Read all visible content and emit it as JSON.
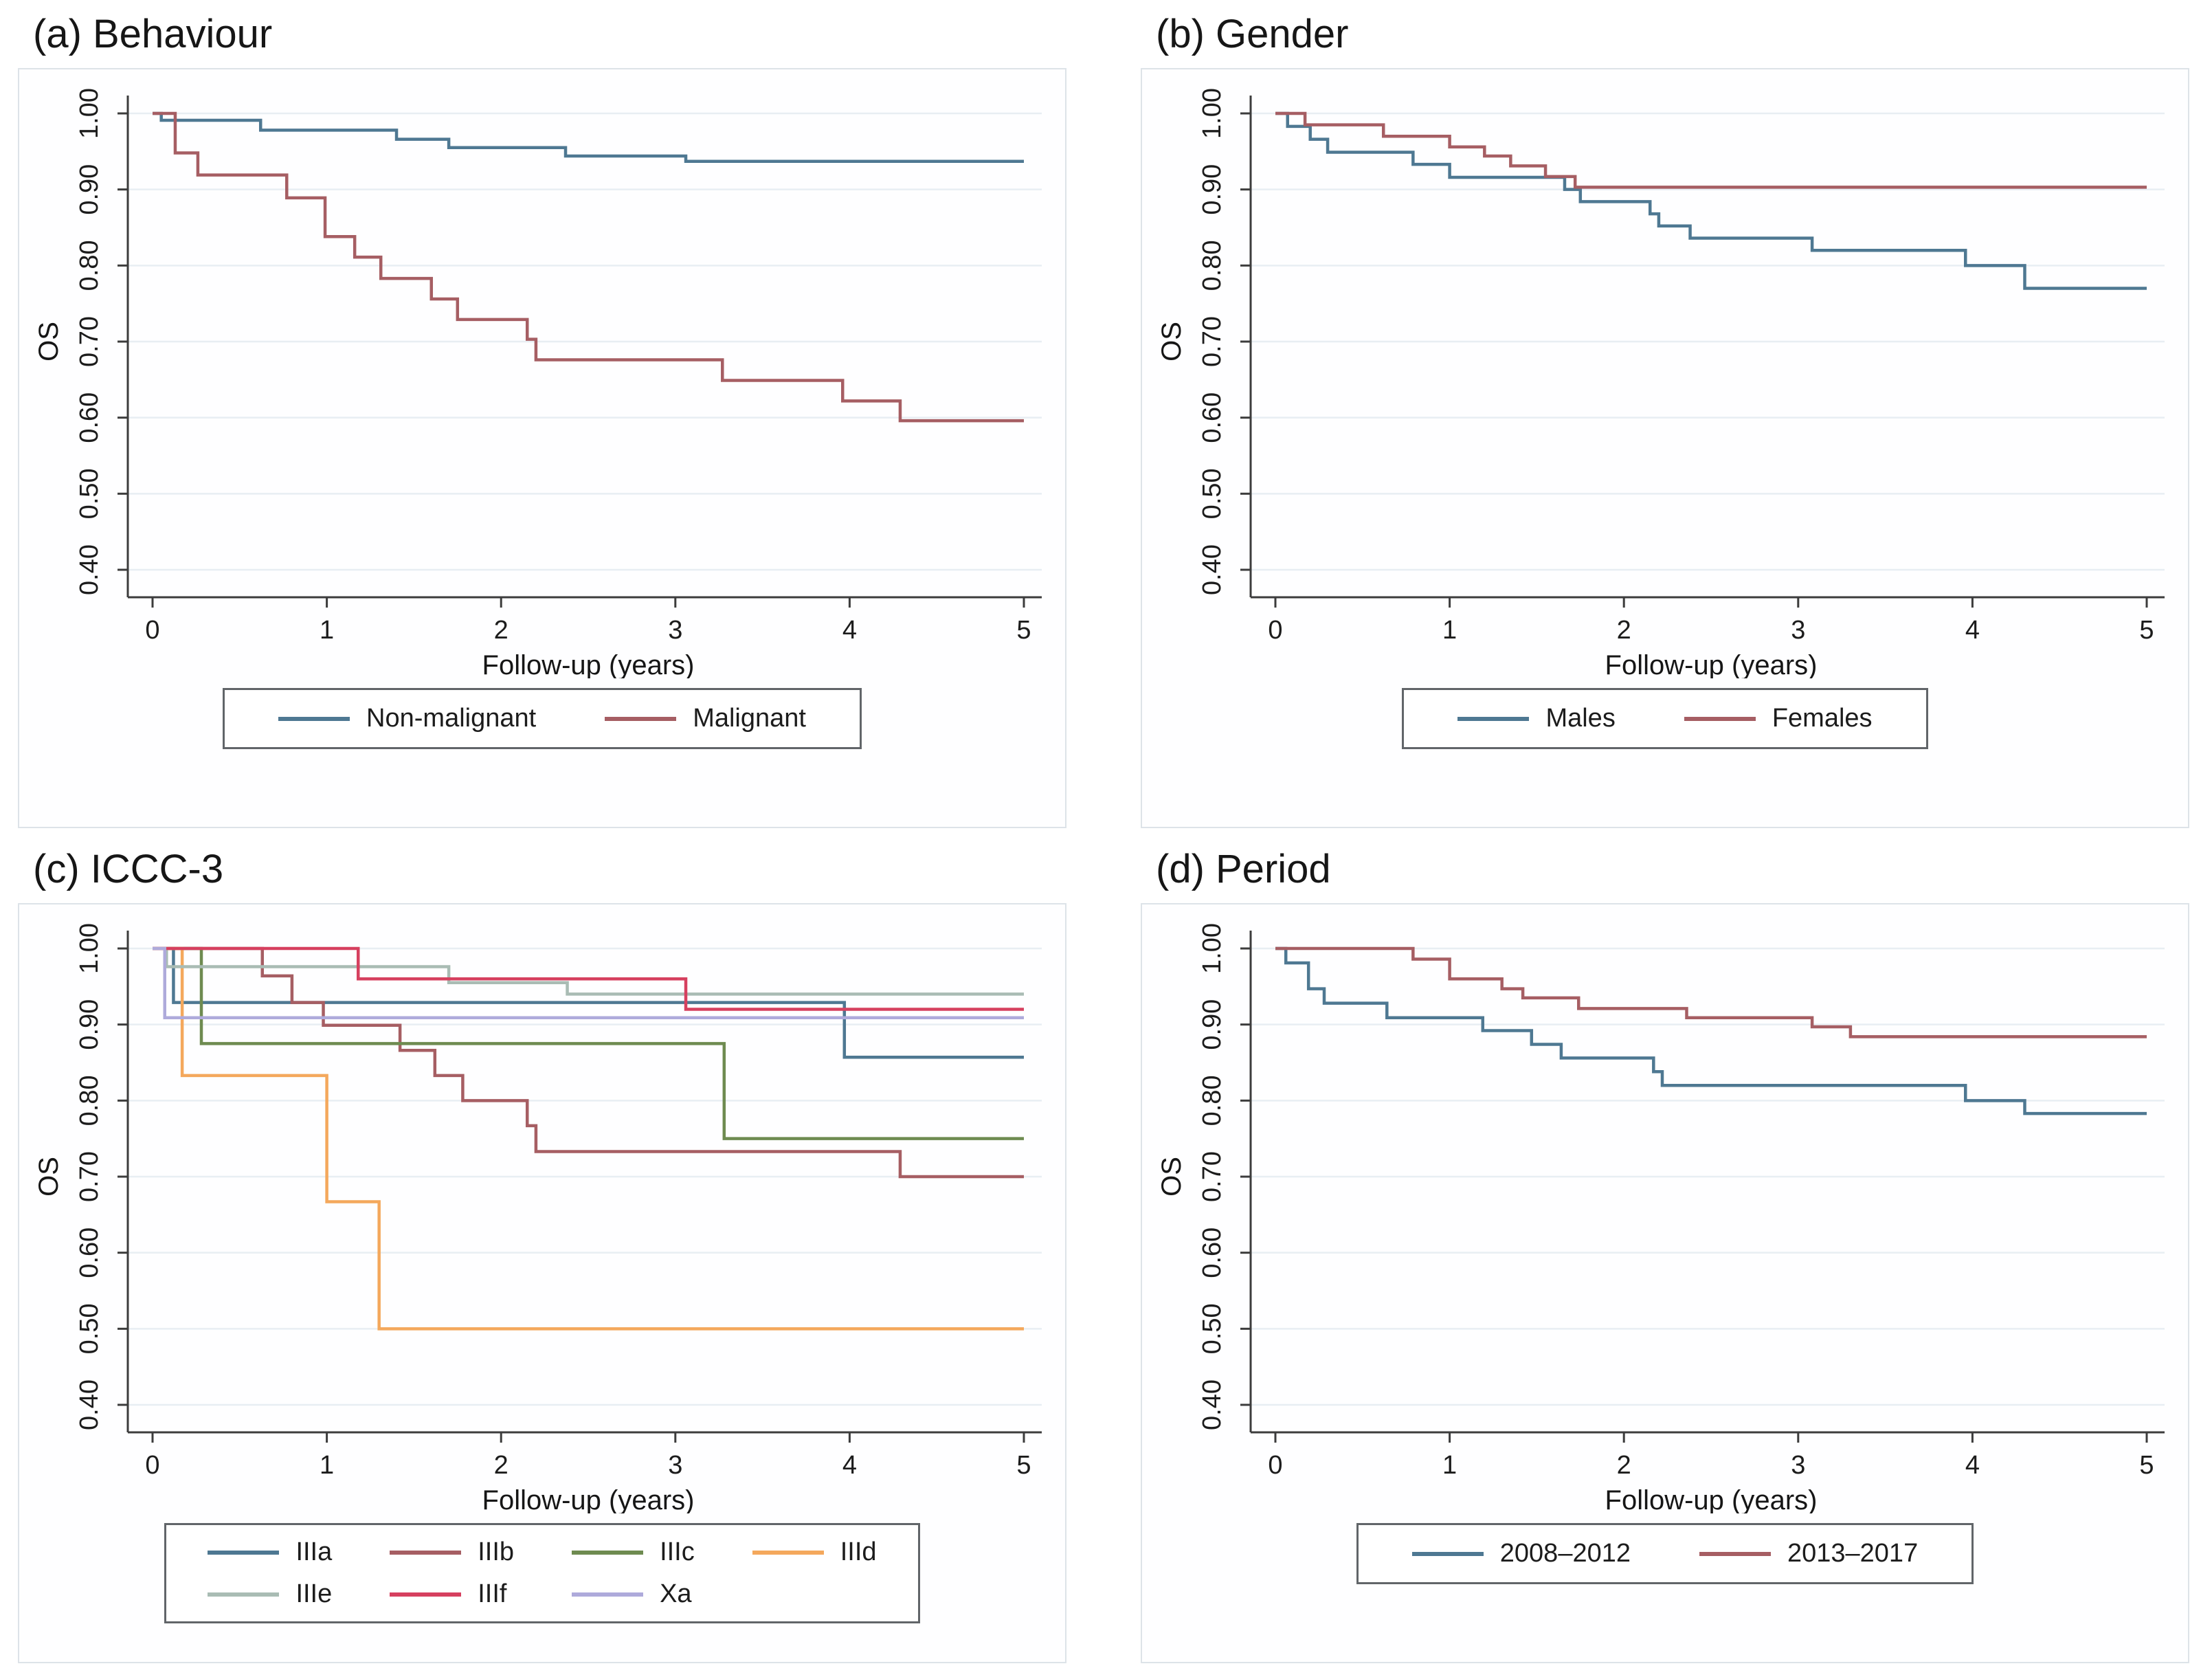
{
  "figure": {
    "background": "#ffffff",
    "panel_border": "#dde3e8",
    "grid_color": "#e8eef3",
    "axis_color": "#3c3c3c",
    "tick_text_color": "#1c1c1c"
  },
  "chart_data": [
    {
      "type": "line",
      "step": true,
      "title": "(a) Behaviour",
      "xlabel": "Follow-up (years)",
      "ylabel": "OS",
      "xlim": [
        0,
        5
      ],
      "ylim": [
        0.4,
        1.0
      ],
      "x_ticks": [
        "0",
        "1",
        "2",
        "3",
        "4",
        "5"
      ],
      "y_ticks": [
        "0.40",
        "0.50",
        "0.60",
        "0.70",
        "0.80",
        "0.90",
        "1.00"
      ],
      "grid": true,
      "legend_position": "bottom",
      "legend_columns": 2,
      "series": [
        {
          "name": "Non-malignant",
          "color": "#4e7892",
          "points": [
            [
              0,
              1.0
            ],
            [
              0.05,
              0.991
            ],
            [
              0.62,
              0.978
            ],
            [
              1.4,
              0.966
            ],
            [
              1.7,
              0.955
            ],
            [
              2.37,
              0.944
            ],
            [
              3.06,
              0.937
            ],
            [
              5,
              0.937
            ]
          ]
        },
        {
          "name": "Malignant",
          "color": "#a65e63",
          "points": [
            [
              0,
              1.0
            ],
            [
              0.13,
              0.948
            ],
            [
              0.26,
              0.919
            ],
            [
              0.77,
              0.889
            ],
            [
              0.99,
              0.838
            ],
            [
              1.16,
              0.811
            ],
            [
              1.31,
              0.783
            ],
            [
              1.6,
              0.756
            ],
            [
              1.75,
              0.729
            ],
            [
              2.15,
              0.703
            ],
            [
              2.2,
              0.676
            ],
            [
              3.27,
              0.649
            ],
            [
              3.96,
              0.622
            ],
            [
              4.29,
              0.596
            ],
            [
              5,
              0.596
            ]
          ]
        }
      ]
    },
    {
      "type": "line",
      "step": true,
      "title": "(b) Gender",
      "xlabel": "Follow-up (years)",
      "ylabel": "OS",
      "xlim": [
        0,
        5
      ],
      "ylim": [
        0.4,
        1.0
      ],
      "x_ticks": [
        "0",
        "1",
        "2",
        "3",
        "4",
        "5"
      ],
      "y_ticks": [
        "0.40",
        "0.50",
        "0.60",
        "0.70",
        "0.80",
        "0.90",
        "1.00"
      ],
      "grid": true,
      "legend_position": "bottom",
      "legend_columns": 2,
      "series": [
        {
          "name": "Males",
          "color": "#4e7892",
          "points": [
            [
              0,
              1.0
            ],
            [
              0.07,
              0.983
            ],
            [
              0.2,
              0.966
            ],
            [
              0.3,
              0.949
            ],
            [
              0.79,
              0.933
            ],
            [
              1.0,
              0.916
            ],
            [
              1.66,
              0.9
            ],
            [
              1.75,
              0.884
            ],
            [
              2.15,
              0.868
            ],
            [
              2.2,
              0.852
            ],
            [
              2.38,
              0.836
            ],
            [
              3.08,
              0.82
            ],
            [
              3.96,
              0.8
            ],
            [
              4.3,
              0.77
            ],
            [
              5,
              0.77
            ]
          ]
        },
        {
          "name": "Females",
          "color": "#a65e63",
          "points": [
            [
              0,
              1.0
            ],
            [
              0.17,
              0.985
            ],
            [
              0.62,
              0.97
            ],
            [
              1.0,
              0.956
            ],
            [
              1.2,
              0.944
            ],
            [
              1.35,
              0.931
            ],
            [
              1.55,
              0.917
            ],
            [
              1.72,
              0.903
            ],
            [
              5,
              0.903
            ]
          ]
        }
      ]
    },
    {
      "type": "line",
      "step": true,
      "title": "(c) ICCC-3",
      "xlabel": "Follow-up (years)",
      "ylabel": "OS",
      "xlim": [
        0,
        5
      ],
      "ylim": [
        0.4,
        1.0
      ],
      "x_ticks": [
        "0",
        "1",
        "2",
        "3",
        "4",
        "5"
      ],
      "y_ticks": [
        "0.40",
        "0.50",
        "0.60",
        "0.70",
        "0.80",
        "0.90",
        "1.00"
      ],
      "grid": true,
      "legend_position": "bottom",
      "legend_columns": 4,
      "series": [
        {
          "name": "IIIa",
          "color": "#4e7892",
          "points": [
            [
              0,
              1.0
            ],
            [
              0.12,
              0.929
            ],
            [
              3.97,
              0.857
            ],
            [
              5,
              0.857
            ]
          ]
        },
        {
          "name": "IIIb",
          "color": "#a65e63",
          "points": [
            [
              0,
              1.0
            ],
            [
              0.63,
              0.964
            ],
            [
              0.8,
              0.929
            ],
            [
              0.98,
              0.899
            ],
            [
              1.42,
              0.866
            ],
            [
              1.62,
              0.833
            ],
            [
              1.78,
              0.8
            ],
            [
              2.15,
              0.767
            ],
            [
              2.2,
              0.733
            ],
            [
              4.29,
              0.7
            ],
            [
              5,
              0.7
            ]
          ]
        },
        {
          "name": "IIIc",
          "color": "#6e8b50",
          "points": [
            [
              0,
              1.0
            ],
            [
              0.28,
              0.875
            ],
            [
              3.28,
              0.75
            ],
            [
              5,
              0.75
            ]
          ]
        },
        {
          "name": "IIId",
          "color": "#f4a85c",
          "points": [
            [
              0,
              1.0
            ],
            [
              0.17,
              0.833
            ],
            [
              1.0,
              0.667
            ],
            [
              1.3,
              0.5
            ],
            [
              5,
              0.5
            ]
          ]
        },
        {
          "name": "IIIe",
          "color": "#a9bcb4",
          "points": [
            [
              0,
              1.0
            ],
            [
              0.08,
              0.976
            ],
            [
              1.7,
              0.955
            ],
            [
              2.38,
              0.94
            ],
            [
              5,
              0.94
            ]
          ]
        },
        {
          "name": "IIIf",
          "color": "#d6405f",
          "points": [
            [
              0,
              1.0
            ],
            [
              1.18,
              0.96
            ],
            [
              3.06,
              0.92
            ],
            [
              5,
              0.92
            ]
          ]
        },
        {
          "name": "Xa",
          "color": "#aeaadb",
          "points": [
            [
              0,
              1.0
            ],
            [
              0.07,
              0.909
            ],
            [
              5,
              0.909
            ]
          ]
        }
      ]
    },
    {
      "type": "line",
      "step": true,
      "title": "(d) Period",
      "xlabel": "Follow-up (years)",
      "ylabel": "OS",
      "xlim": [
        0,
        5
      ],
      "ylim": [
        0.4,
        1.0
      ],
      "x_ticks": [
        "0",
        "1",
        "2",
        "3",
        "4",
        "5"
      ],
      "y_ticks": [
        "0.40",
        "0.50",
        "0.60",
        "0.70",
        "0.80",
        "0.90",
        "1.00"
      ],
      "grid": true,
      "legend_position": "bottom",
      "legend_columns": 2,
      "series": [
        {
          "name": "2008–2012",
          "color": "#4e7892",
          "points": [
            [
              0,
              1.0
            ],
            [
              0.06,
              0.981
            ],
            [
              0.19,
              0.947
            ],
            [
              0.28,
              0.928
            ],
            [
              0.64,
              0.909
            ],
            [
              1.19,
              0.892
            ],
            [
              1.47,
              0.874
            ],
            [
              1.64,
              0.856
            ],
            [
              2.17,
              0.838
            ],
            [
              2.22,
              0.82
            ],
            [
              3.96,
              0.8
            ],
            [
              4.3,
              0.783
            ],
            [
              5,
              0.783
            ]
          ]
        },
        {
          "name": "2013–2017",
          "color": "#a65e63",
          "points": [
            [
              0,
              1.0
            ],
            [
              0.79,
              0.986
            ],
            [
              1.0,
              0.96
            ],
            [
              1.3,
              0.947
            ],
            [
              1.42,
              0.935
            ],
            [
              1.74,
              0.921
            ],
            [
              2.36,
              0.909
            ],
            [
              3.08,
              0.897
            ],
            [
              3.3,
              0.884
            ],
            [
              5,
              0.884
            ]
          ]
        }
      ]
    }
  ]
}
